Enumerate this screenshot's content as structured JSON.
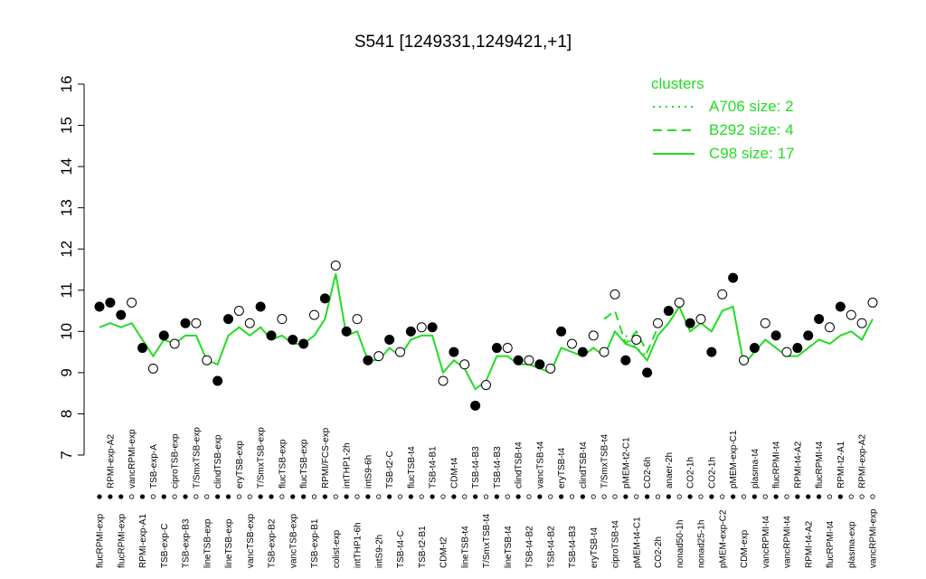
{
  "chart_data": {
    "type": "line",
    "title": "S541 [1249331,1249421,+1]",
    "categories": [
      "flucRPMI-exp",
      "RPMI-exp-A2",
      "flucRPMI-exp",
      "vancRPMI-exp",
      "RPMI-exp-A1",
      "TSB-exp-A",
      "TSB-exp-C",
      "ciproTSB-exp",
      "TSB-exp-B3",
      "T/SmxTSB-exp",
      "lineTSB-exp",
      "clindTSB-exp",
      "lineTSB-exp",
      "eryTSB-exp",
      "vancTSB-exp",
      "T/SmxTSB-exp",
      "TSB-exp-B2",
      "flucTSB-exp",
      "vancTSB-exp",
      "flucTSB-exp",
      "TSB-exp-B1",
      "RPMI/FCS-exp",
      "colist-exp",
      "intTHP1-2h",
      "intTHP1-6h",
      "intS9-6h",
      "intS9-2h",
      "TSB-t2-C",
      "TSB-t4-C",
      "flucTSB-t4",
      "TSB-t2-B1",
      "TSB-t4-B1",
      "CDM-t2",
      "CDM-t4",
      "lineTSB-t4",
      "TSB-t4-B3",
      "T/SmxTSB-t4",
      "TSB-t4-B3",
      "lineTSB-t4",
      "clindTSB-t4",
      "TSB-t4-B2",
      "vancTSB-t4",
      "TSB-t4-B2",
      "eryTSB-t4",
      "TSB-t4-B3",
      "clindTSB-t4",
      "eryTSB-t4",
      "T/SmxTSB-t4",
      "ciproTSB-t4",
      "pMEM-t2-C1",
      "pMEM-t4-C1",
      "CO2-6h",
      "CO2-2h",
      "anaer-2h",
      "nonad50-1h",
      "CO2-1h",
      "nonad25-1h",
      "CO2-1h",
      "pMEM-exp-C2",
      "pMEM-exp-C1",
      "CDM-exp",
      "plasma-t4",
      "vancRPMI-t4",
      "flucRPMI-t4",
      "vancRPMI-t4",
      "RPMI-t4-A2",
      "RPMI-t4-A2",
      "flucRPMI-t4",
      "flucRPMI-t4",
      "RPMI-t2-A1",
      "plasma-exp",
      "RPMI-exp-A2",
      "vancRPMI-exp"
    ],
    "values": [
      10.6,
      10.7,
      10.4,
      10.7,
      9.6,
      9.1,
      9.9,
      9.7,
      10.2,
      10.2,
      9.3,
      8.8,
      10.3,
      10.5,
      10.2,
      10.6,
      9.9,
      10.3,
      9.8,
      9.7,
      10.4,
      10.8,
      11.6,
      10.0,
      10.3,
      9.3,
      9.4,
      9.8,
      9.5,
      10.0,
      10.1,
      10.1,
      8.8,
      9.5,
      9.2,
      8.2,
      8.7,
      9.6,
      9.6,
      9.3,
      9.3,
      9.2,
      9.1,
      10.0,
      9.7,
      9.5,
      9.9,
      9.5,
      10.9,
      9.3,
      9.8,
      9.0,
      10.2,
      10.5,
      10.7,
      10.2,
      10.3,
      9.5,
      10.9,
      11.3,
      9.3,
      9.6,
      10.2,
      9.9,
      9.5,
      9.6,
      9.9,
      10.3,
      10.1,
      10.6,
      10.4,
      10.2,
      10.7
    ],
    "filled": [
      true,
      true,
      true,
      false,
      true,
      false,
      true,
      false,
      true,
      false,
      false,
      true,
      true,
      false,
      false,
      true,
      true,
      false,
      true,
      true,
      false,
      true,
      false,
      true,
      false,
      true,
      false,
      true,
      false,
      true,
      false,
      true,
      false,
      true,
      false,
      true,
      false,
      true,
      false,
      true,
      false,
      true,
      false,
      true,
      false,
      true,
      false,
      false,
      false,
      true,
      false,
      true,
      false,
      true,
      false,
      true,
      false,
      true,
      false,
      true,
      false,
      true,
      false,
      true,
      false,
      true,
      true,
      true,
      false,
      true,
      false,
      false,
      false
    ],
    "legend_title": "clusters",
    "series": [
      {
        "name": "A706 size: 2",
        "color": "#22dd22",
        "dash": "dotted",
        "values": [
          null,
          null,
          null,
          null,
          null,
          null,
          null,
          null,
          null,
          null,
          null,
          null,
          null,
          null,
          null,
          null,
          null,
          null,
          null,
          null,
          null,
          null,
          null,
          null,
          null,
          null,
          null,
          null,
          null,
          null,
          null,
          null,
          null,
          null,
          null,
          null,
          null,
          null,
          null,
          null,
          null,
          null,
          null,
          null,
          null,
          null,
          null,
          null,
          null,
          9.9,
          9.6,
          9.4,
          null,
          null,
          null,
          null,
          null,
          null,
          null,
          null,
          null,
          null,
          null,
          null,
          null,
          null,
          null,
          null,
          null,
          null,
          null,
          null,
          null
        ]
      },
      {
        "name": "B292 size: 4",
        "color": "#22dd22",
        "dash": "dashed",
        "values": [
          null,
          null,
          null,
          null,
          null,
          null,
          null,
          null,
          null,
          null,
          null,
          null,
          null,
          null,
          null,
          null,
          null,
          null,
          null,
          null,
          null,
          null,
          null,
          null,
          null,
          null,
          null,
          null,
          null,
          null,
          null,
          null,
          null,
          null,
          null,
          null,
          null,
          null,
          null,
          null,
          null,
          null,
          null,
          null,
          null,
          null,
          null,
          10.3,
          10.5,
          9.7,
          10.0,
          9.5,
          10.1,
          null,
          null,
          null,
          null,
          null,
          null,
          null,
          null,
          null,
          null,
          null,
          null,
          null,
          null,
          null,
          null,
          null,
          null,
          null,
          null
        ]
      },
      {
        "name": "C98 size: 17",
        "color": "#22dd22",
        "dash": "solid",
        "values": [
          10.1,
          10.2,
          10.1,
          10.2,
          9.8,
          9.4,
          9.8,
          9.7,
          9.9,
          9.9,
          9.3,
          9.2,
          9.9,
          10.1,
          9.9,
          10.1,
          9.8,
          9.9,
          9.7,
          9.7,
          9.9,
          10.3,
          11.4,
          9.9,
          10.0,
          9.3,
          9.3,
          9.6,
          9.4,
          9.8,
          9.9,
          9.9,
          9.0,
          9.3,
          9.1,
          8.6,
          8.8,
          9.4,
          9.4,
          9.2,
          9.2,
          9.1,
          9.0,
          9.6,
          9.5,
          9.4,
          9.6,
          9.4,
          10.0,
          9.7,
          9.6,
          9.3,
          9.9,
          10.2,
          10.6,
          10.0,
          10.2,
          10.0,
          10.5,
          10.6,
          9.2,
          9.5,
          9.8,
          9.6,
          9.4,
          9.4,
          9.6,
          9.8,
          9.7,
          9.9,
          10.0,
          9.8,
          10.3
        ]
      }
    ],
    "ylim": [
      7,
      16
    ],
    "yticks": [
      7,
      8,
      9,
      10,
      11,
      12,
      13,
      14,
      15,
      16
    ]
  }
}
